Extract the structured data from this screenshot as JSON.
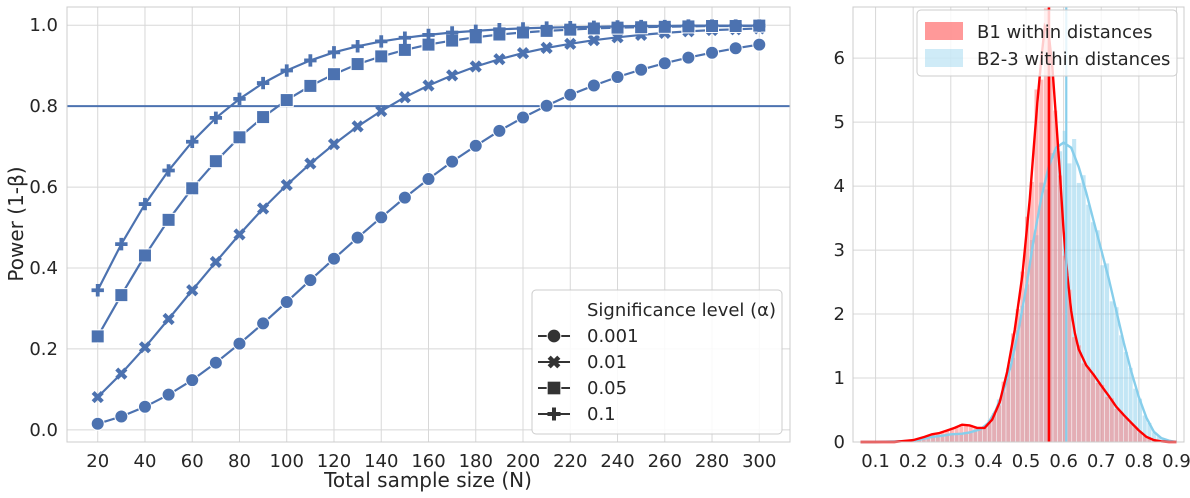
{
  "chart_data": [
    {
      "type": "line",
      "xlabel": "Total sample size (N)",
      "ylabel": "Power (1-β)",
      "xlim": [
        7,
        313
      ],
      "ylim": [
        -0.03,
        1.045
      ],
      "x_ticks": [
        20,
        40,
        60,
        80,
        100,
        120,
        140,
        160,
        180,
        200,
        220,
        240,
        260,
        280,
        300
      ],
      "y_ticks": [
        0.0,
        0.2,
        0.4,
        0.6,
        0.8,
        1.0
      ],
      "x_tick_labels": [
        "20",
        "40",
        "60",
        "80",
        "100",
        "120",
        "140",
        "160",
        "180",
        "200",
        "220",
        "240",
        "260",
        "280",
        "300"
      ],
      "y_tick_labels": [
        "0.0",
        "0.2",
        "0.4",
        "0.6",
        "0.8",
        "1.0"
      ],
      "reference_line": 0.8,
      "line_color": "#4c72b0",
      "x": [
        20,
        30,
        40,
        50,
        60,
        70,
        80,
        90,
        100,
        110,
        120,
        130,
        140,
        150,
        160,
        170,
        180,
        190,
        200,
        210,
        220,
        230,
        240,
        250,
        260,
        270,
        280,
        290,
        300
      ],
      "legend": {
        "title": "Significance level (α)",
        "placement": "bottom-right"
      },
      "series": [
        {
          "name": "0.001",
          "marker": "circle",
          "values": [
            0.015,
            0.033,
            0.057,
            0.087,
            0.123,
            0.166,
            0.213,
            0.263,
            0.316,
            0.37,
            0.423,
            0.475,
            0.525,
            0.574,
            0.62,
            0.663,
            0.702,
            0.739,
            0.772,
            0.801,
            0.828,
            0.851,
            0.872,
            0.89,
            0.906,
            0.92,
            0.932,
            0.943,
            0.952
          ]
        },
        {
          "name": "0.01",
          "marker": "x",
          "values": [
            0.081,
            0.139,
            0.204,
            0.274,
            0.345,
            0.415,
            0.483,
            0.547,
            0.605,
            0.658,
            0.706,
            0.75,
            0.788,
            0.822,
            0.851,
            0.876,
            0.898,
            0.916,
            0.931,
            0.944,
            0.954,
            0.963,
            0.97,
            0.976,
            0.981,
            0.985,
            0.988,
            0.99,
            0.992
          ]
        },
        {
          "name": "0.05",
          "marker": "square",
          "values": [
            0.231,
            0.333,
            0.431,
            0.519,
            0.597,
            0.664,
            0.723,
            0.773,
            0.815,
            0.85,
            0.879,
            0.904,
            0.923,
            0.939,
            0.952,
            0.962,
            0.97,
            0.977,
            0.982,
            0.986,
            0.989,
            0.992,
            0.994,
            0.995,
            0.996,
            0.997,
            0.998,
            0.998,
            0.999
          ]
        },
        {
          "name": "0.1",
          "marker": "plus",
          "values": [
            0.345,
            0.459,
            0.558,
            0.641,
            0.712,
            0.771,
            0.818,
            0.857,
            0.888,
            0.913,
            0.933,
            0.948,
            0.96,
            0.969,
            0.976,
            0.982,
            0.986,
            0.99,
            0.992,
            0.994,
            0.995,
            0.996,
            0.997,
            0.998,
            0.998,
            0.999,
            0.999,
            0.999,
            0.999
          ]
        }
      ]
    },
    {
      "type": "histogram",
      "xlim": [
        0.04,
        0.92
      ],
      "ylim": [
        0,
        6.8
      ],
      "x_ticks": [
        0.1,
        0.2,
        0.3,
        0.4,
        0.5,
        0.6,
        0.7,
        0.8,
        0.9
      ],
      "x_tick_labels": [
        "0.1",
        "0.2",
        "0.3",
        "0.4",
        "0.5",
        "0.6",
        "0.7",
        "0.8",
        "0.9"
      ],
      "y_ticks": [
        0,
        1,
        2,
        3,
        4,
        5,
        6
      ],
      "y_tick_labels": [
        "0",
        "1",
        "2",
        "3",
        "4",
        "5",
        "6"
      ],
      "bin_width": 0.0125,
      "legend": {
        "placement": "top-right"
      },
      "series": [
        {
          "name": "B1 within distances",
          "fill_color": "#ff8080",
          "line_color": "#ff0000",
          "mean_line": 0.561,
          "kde_x": [
            0.06,
            0.1,
            0.15,
            0.2,
            0.23,
            0.25,
            0.27,
            0.29,
            0.31,
            0.33,
            0.35,
            0.37,
            0.39,
            0.41,
            0.43,
            0.45,
            0.47,
            0.49,
            0.51,
            0.52,
            0.53,
            0.54,
            0.55,
            0.56,
            0.57,
            0.58,
            0.59,
            0.6,
            0.61,
            0.62,
            0.63,
            0.64,
            0.66,
            0.68,
            0.7,
            0.72,
            0.74,
            0.76,
            0.78,
            0.8,
            0.82,
            0.84,
            0.86,
            0.88,
            0.9
          ],
          "kde_y": [
            0.0,
            0.0,
            0.0,
            0.03,
            0.08,
            0.12,
            0.14,
            0.18,
            0.22,
            0.27,
            0.26,
            0.22,
            0.22,
            0.35,
            0.62,
            1.1,
            1.75,
            2.6,
            3.8,
            4.55,
            5.3,
            5.95,
            6.5,
            6.4,
            5.85,
            5.05,
            4.2,
            3.3,
            2.6,
            2.05,
            1.7,
            1.45,
            1.2,
            1.05,
            0.88,
            0.72,
            0.55,
            0.42,
            0.3,
            0.18,
            0.08,
            0.03,
            0.01,
            0.0,
            0.0
          ]
        },
        {
          "name": "B2-3 within distances",
          "fill_color": "#87ceeb",
          "line_color": "#87ceeb",
          "mean_line": 0.607,
          "kde_x": [
            0.06,
            0.1,
            0.15,
            0.2,
            0.22,
            0.25,
            0.28,
            0.3,
            0.33,
            0.35,
            0.38,
            0.4,
            0.42,
            0.44,
            0.46,
            0.48,
            0.5,
            0.52,
            0.54,
            0.56,
            0.58,
            0.6,
            0.62,
            0.64,
            0.66,
            0.68,
            0.7,
            0.72,
            0.74,
            0.76,
            0.78,
            0.8,
            0.82,
            0.84,
            0.86,
            0.88,
            0.9
          ],
          "kde_y": [
            0.0,
            0.0,
            0.01,
            0.02,
            0.04,
            0.08,
            0.1,
            0.12,
            0.13,
            0.15,
            0.2,
            0.3,
            0.5,
            0.8,
            1.2,
            1.75,
            2.4,
            3.15,
            3.8,
            4.3,
            4.6,
            4.68,
            4.6,
            4.3,
            3.9,
            3.45,
            3.0,
            2.55,
            2.05,
            1.55,
            1.1,
            0.7,
            0.38,
            0.16,
            0.06,
            0.02,
            0.0
          ]
        }
      ]
    }
  ]
}
